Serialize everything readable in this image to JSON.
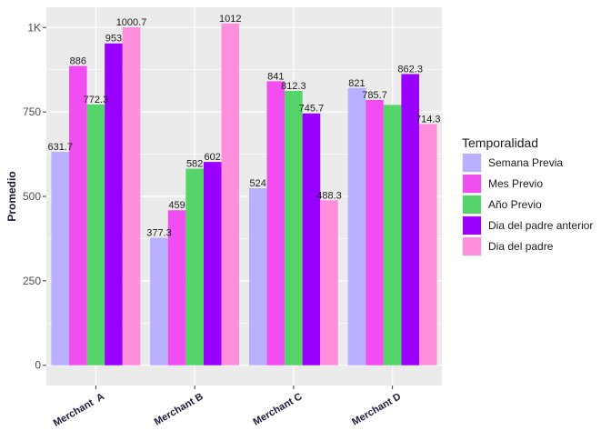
{
  "chart_data": {
    "type": "bar",
    "title": "",
    "xlabel": "",
    "ylabel": "Promedio",
    "ylim": [
      -60,
      1060
    ],
    "yticks": [
      0,
      250,
      500,
      750,
      1000
    ],
    "ytick_labels": [
      "0",
      "250",
      "500",
      "750",
      "1K"
    ],
    "categories": [
      "Merchant  A",
      "Merchant B",
      "Merchant C",
      "Merchant D"
    ],
    "legend": {
      "title": "Temporalidad",
      "placement": "right"
    },
    "series": [
      {
        "name": "Semana Previa",
        "color": "#b8b0ff",
        "values": [
          631.7,
          377.3,
          524,
          821
        ],
        "labels": [
          "631.7",
          "377.3",
          "524",
          "821"
        ]
      },
      {
        "name": "Mes Previo",
        "color": "#f04ef0",
        "values": [
          886,
          459,
          841,
          785.7
        ],
        "labels": [
          "886",
          "459",
          "841",
          "785.7"
        ]
      },
      {
        "name": "Año Previo",
        "color": "#55d46a",
        "values": [
          772.3,
          582,
          812.3,
          771
        ],
        "labels": [
          "772.3",
          "582",
          "812.3",
          ""
        ]
      },
      {
        "name": "Dia del padre anterior",
        "color": "#9a00ff",
        "values": [
          953,
          602,
          745.7,
          862.3
        ],
        "labels": [
          "953",
          "602",
          "745.7",
          "862.3"
        ]
      },
      {
        "name": "Dia del padre",
        "color": "#ff8edc",
        "values": [
          1000.7,
          1012,
          488.3,
          714.3
        ],
        "labels": [
          "1000.7",
          "1012",
          "488.3",
          "714.3"
        ]
      }
    ],
    "grid": true,
    "panel_background": "#ebebeb",
    "grid_color": "#ffffff"
  }
}
